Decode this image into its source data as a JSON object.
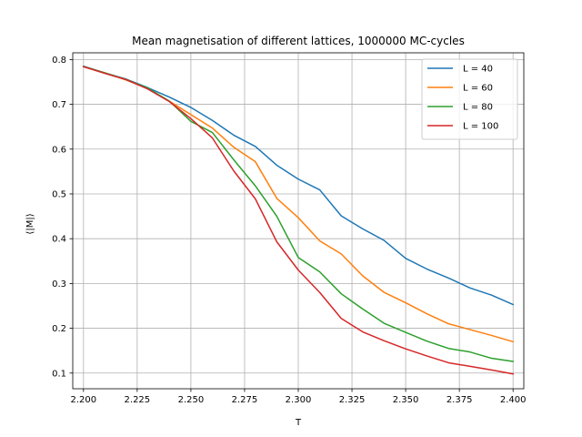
{
  "chart_data": {
    "type": "line",
    "title": "Mean magnetisation of different lattices, 1000000 MC-cycles",
    "xlabel": "T",
    "ylabel": "⟨|M|⟩",
    "xlim": [
      2.195,
      2.405
    ],
    "ylim": [
      0.065,
      0.815
    ],
    "xticks": [
      2.2,
      2.225,
      2.25,
      2.275,
      2.3,
      2.325,
      2.35,
      2.375,
      2.4
    ],
    "xtick_labels": [
      "2.200",
      "2.225",
      "2.250",
      "2.275",
      "2.300",
      "2.325",
      "2.350",
      "2.375",
      "2.400"
    ],
    "yticks": [
      0.1,
      0.2,
      0.3,
      0.4,
      0.5,
      0.6,
      0.7,
      0.8
    ],
    "ytick_labels": [
      "0.1",
      "0.2",
      "0.3",
      "0.4",
      "0.5",
      "0.6",
      "0.7",
      "0.8"
    ],
    "grid": true,
    "legend_position": "top-right",
    "x": [
      2.2,
      2.21,
      2.22,
      2.23,
      2.24,
      2.25,
      2.26,
      2.27,
      2.28,
      2.29,
      2.3,
      2.31,
      2.32,
      2.33,
      2.34,
      2.35,
      2.36,
      2.37,
      2.38,
      2.39,
      2.4
    ],
    "series": [
      {
        "name": "L = 40",
        "color": "#1f77b4",
        "values": [
          0.785,
          0.77,
          0.756,
          0.737,
          0.716,
          0.693,
          0.664,
          0.631,
          0.606,
          0.564,
          0.533,
          0.509,
          0.451,
          0.422,
          0.396,
          0.356,
          0.332,
          0.312,
          0.29,
          0.274,
          0.253
        ]
      },
      {
        "name": "L = 60",
        "color": "#ff7f0e",
        "values": [
          0.784,
          0.77,
          0.754,
          0.735,
          0.707,
          0.677,
          0.647,
          0.604,
          0.572,
          0.49,
          0.447,
          0.395,
          0.366,
          0.317,
          0.28,
          0.257,
          0.232,
          0.21,
          0.197,
          0.184,
          0.17
        ]
      },
      {
        "name": "L = 80",
        "color": "#2ca02c",
        "values": [
          0.784,
          0.77,
          0.755,
          0.736,
          0.707,
          0.662,
          0.637,
          0.576,
          0.518,
          0.45,
          0.358,
          0.326,
          0.277,
          0.243,
          0.211,
          0.191,
          0.171,
          0.155,
          0.147,
          0.133,
          0.126
        ]
      },
      {
        "name": "L = 100",
        "color": "#d62728",
        "values": [
          0.784,
          0.769,
          0.755,
          0.734,
          0.706,
          0.668,
          0.625,
          0.551,
          0.489,
          0.393,
          0.33,
          0.28,
          0.222,
          0.192,
          0.172,
          0.154,
          0.138,
          0.123,
          0.115,
          0.107,
          0.098
        ]
      }
    ]
  }
}
